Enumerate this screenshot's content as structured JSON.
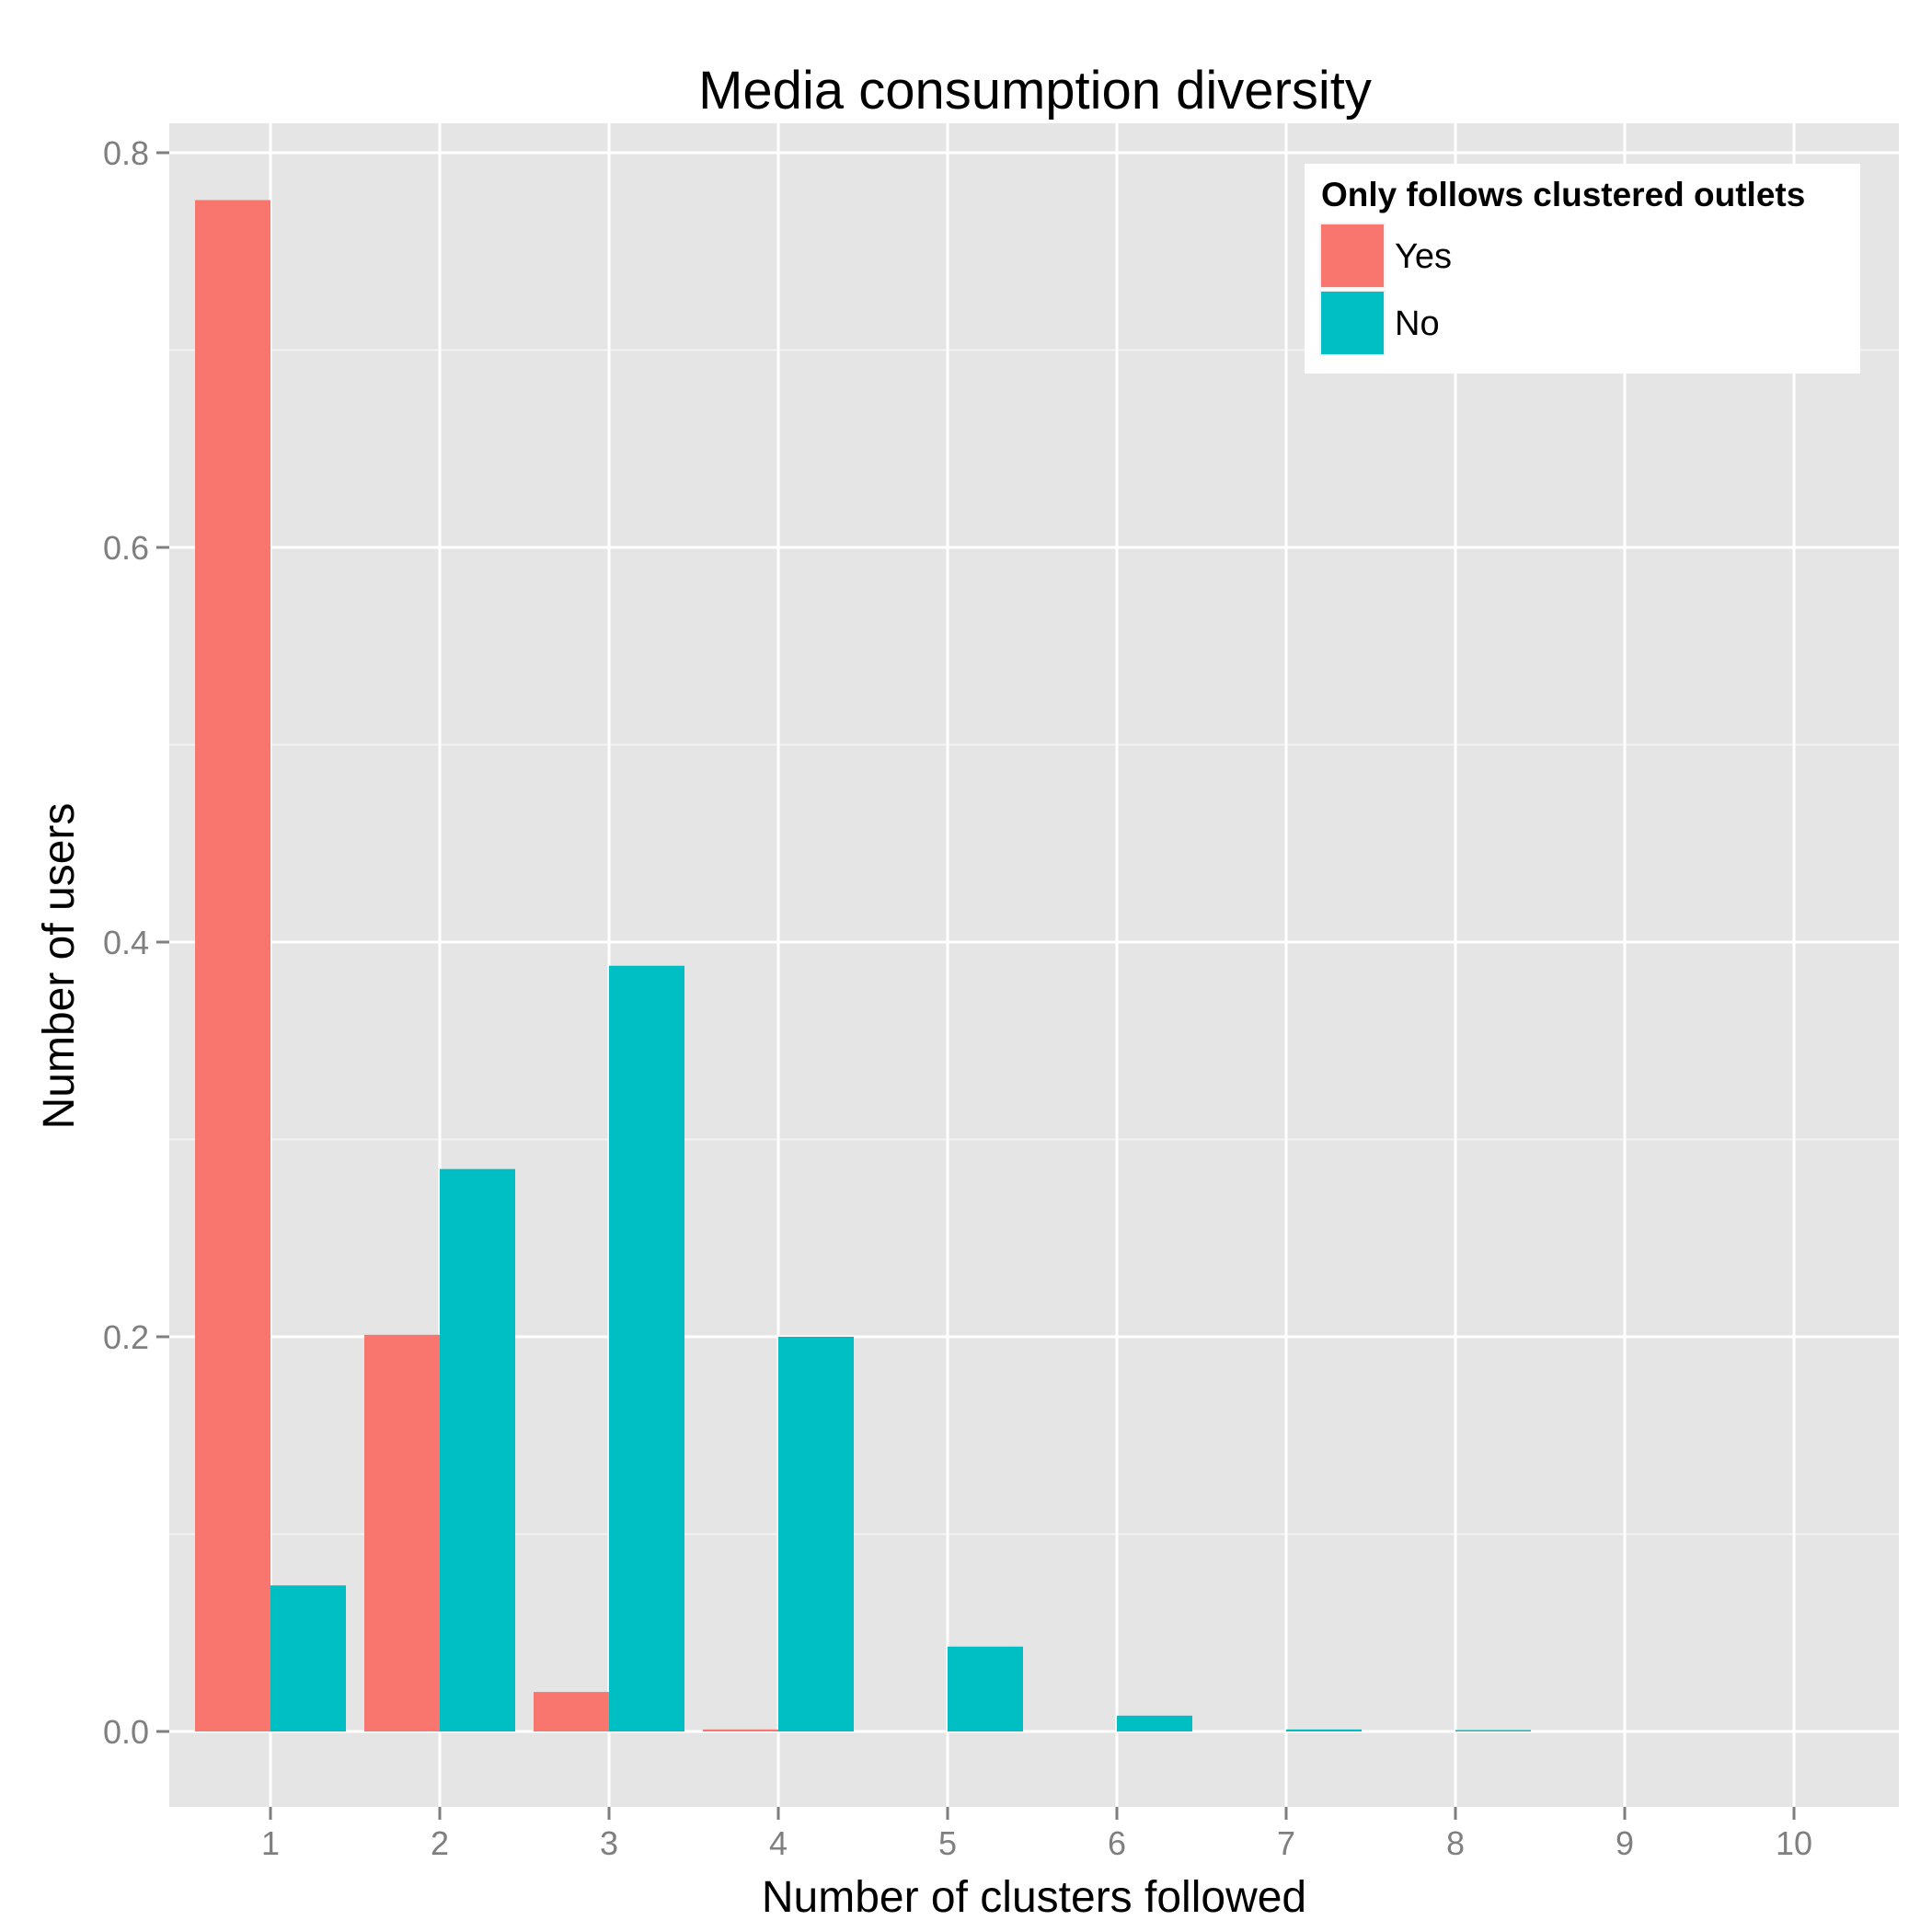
{
  "chart_data": {
    "type": "bar",
    "title": "Media consumption diversity",
    "xlabel": "Number of clusters followed",
    "ylabel": "Number of users",
    "categories": [
      "1",
      "2",
      "3",
      "4",
      "5",
      "6",
      "7",
      "8",
      "9",
      "10"
    ],
    "series": [
      {
        "name": "Yes",
        "color": "#F8766D",
        "values": [
          0.776,
          0.201,
          0.02,
          0.001,
          0,
          0,
          0,
          0,
          0,
          0
        ]
      },
      {
        "name": "No",
        "color": "#00BFC4",
        "values": [
          0.074,
          0.285,
          0.388,
          0.2,
          0.043,
          0.008,
          0.001,
          0.0005,
          0,
          0
        ]
      }
    ],
    "ylim": [
      -0.038,
      0.816
    ],
    "yticks": [
      "0.0",
      "0.2",
      "0.4",
      "0.6",
      "0.8"
    ],
    "legend": {
      "title": "Only follows clustered outlets",
      "position": "top-right"
    },
    "grid": true,
    "panel_background": "#E5E5E5",
    "grid_color": "#FFFFFF"
  }
}
